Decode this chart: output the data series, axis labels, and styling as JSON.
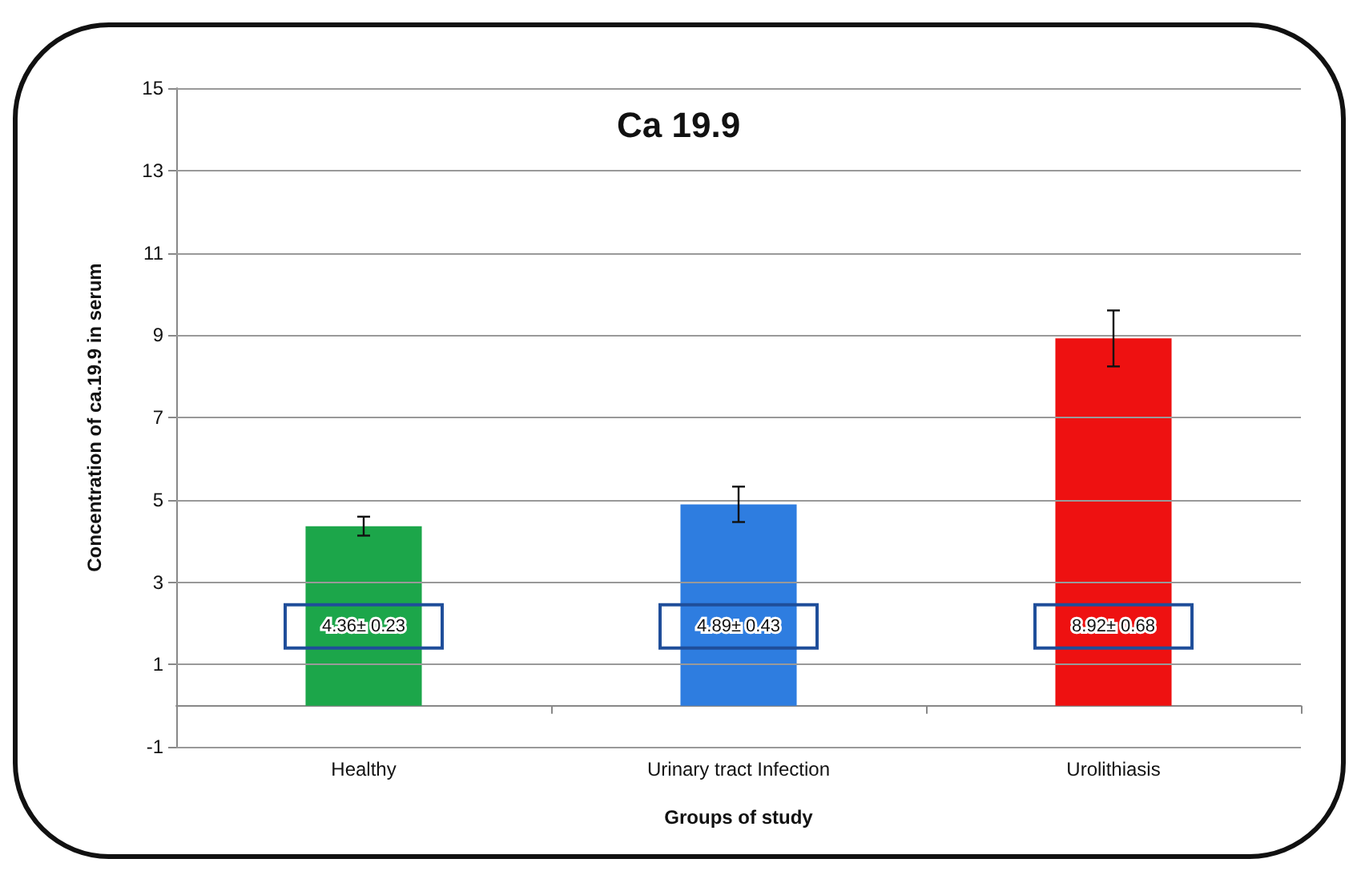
{
  "chart_data": {
    "type": "bar",
    "title": "Ca 19.9",
    "xlabel": "Groups of study",
    "ylabel": "Concentration of ca.19.9 in serum",
    "categories": [
      "Healthy",
      "Urinary tract Infection",
      "Urolithiasis"
    ],
    "values": [
      4.36,
      4.89,
      8.92
    ],
    "colors": [
      "#1ca64a",
      "#2e7de0",
      "#ee1111"
    ],
    "errors": [
      0.23,
      0.43,
      0.68
    ],
    "value_labels": [
      "4.36± 0.23",
      "4.89± 0.43",
      "8.92± 0.68"
    ],
    "ylim": [
      -1,
      15
    ],
    "yticks": [
      -1,
      1,
      3,
      5,
      7,
      9,
      11,
      13,
      15
    ],
    "grid": "y"
  }
}
